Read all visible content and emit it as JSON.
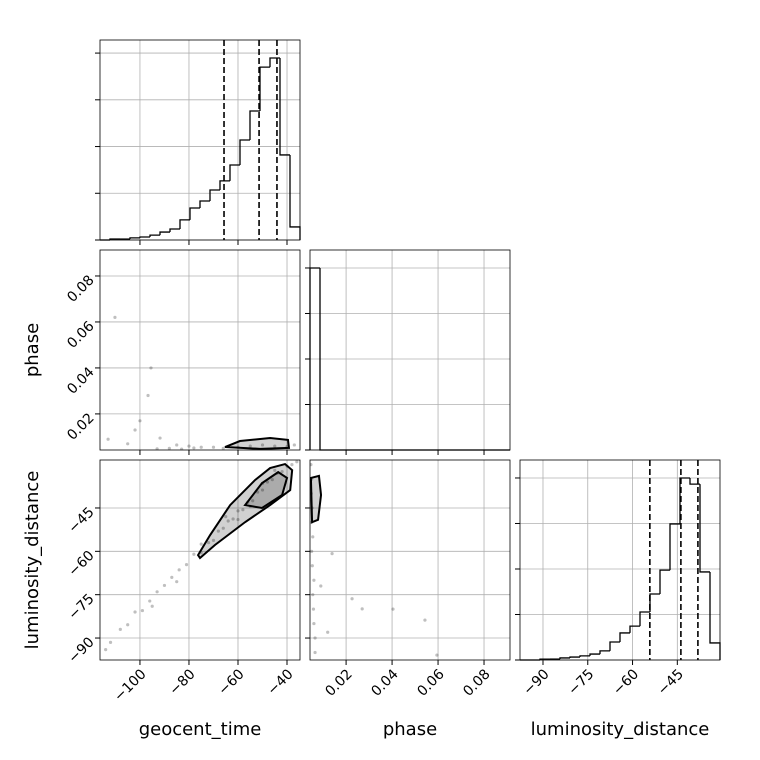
{
  "chart_data": [
    {
      "type": "histogram",
      "color": "#000000",
      "grid": true,
      "bins": [
        -116.3,
        -112.22,
        -108.14,
        -104.06,
        -99.98,
        -95.9,
        -91.82,
        -87.74,
        -83.66,
        -79.58,
        -75.5,
        -71.42,
        -67.34,
        -63.26,
        -59.18,
        -55.1,
        -51.02,
        -46.94,
        -42.86,
        -38.78,
        -34.7
      ],
      "values": [
        0,
        4,
        4,
        9,
        13,
        21,
        34,
        47,
        86,
        137,
        167,
        214,
        253,
        321,
        428,
        552,
        740,
        779,
        364,
        56
      ],
      "quantiles": [
        -65.7,
        -51.4,
        -44.1
      ],
      "xlim": [
        -116.3,
        -34.7
      ],
      "xticks": [
        -100,
        -80,
        -60,
        -40
      ],
      "ylim": [
        0,
        856
      ],
      "yticks": [
        0,
        200,
        400,
        600,
        800
      ]
    },
    {
      "type": "scatter",
      "color": "#000000",
      "grid": true,
      "ylabel": "phase",
      "x": [
        -110.2,
        -95.5,
        -96.7,
        -100,
        -102,
        -91.8,
        -105,
        -85,
        -80,
        -75,
        -70,
        -88,
        -78,
        -66,
        -60,
        -55,
        -50,
        -45,
        -40,
        -37,
        -93,
        -83,
        -113
      ],
      "y": [
        0.062,
        0.04,
        0.028,
        0.017,
        0.013,
        0.0095,
        0.007,
        0.0065,
        0.006,
        0.0055,
        0.0055,
        0.005,
        0.0052,
        0.005,
        0.0055,
        0.006,
        0.0065,
        0.006,
        0.0058,
        0.0065,
        0.0048,
        0.0047,
        0.009
      ],
      "contours": [
        {
          "x": [
            -65.3,
            -59.2,
            -46.9,
            -39.6,
            -39.2,
            -51.0
          ],
          "y": [
            0.0056,
            0.0082,
            0.0095,
            0.0087,
            0.0052,
            0.0048
          ]
        }
      ],
      "xlim": [
        -116.3,
        -34.7
      ],
      "xticks": [
        -100,
        -80,
        -60,
        -40
      ],
      "ylim": [
        0.0043,
        0.0913
      ],
      "yticks": [
        0.02,
        0.04,
        0.06,
        0.08
      ]
    },
    {
      "type": "histogram",
      "color": "#000000",
      "grid": true,
      "bins": [
        0.0043,
        0.00865,
        0.013,
        0.01735,
        0.0217,
        0.02605,
        0.0304,
        0.03475,
        0.0391,
        0.04345,
        0.0478,
        0.05215,
        0.0565,
        0.06085,
        0.0652,
        0.06955,
        0.0739,
        0.07825,
        0.0826,
        0.08695,
        0.0913
      ],
      "values": [
        800,
        0,
        0,
        0,
        0,
        0,
        0,
        0,
        0,
        0,
        0,
        0,
        0,
        0,
        0,
        0,
        0,
        0,
        0,
        0
      ],
      "xlim": [
        0.0043,
        0.0913
      ],
      "xticks": [
        0.02,
        0.04,
        0.06,
        0.08
      ],
      "ylim": [
        0,
        879
      ],
      "yticks": [
        0,
        200,
        400,
        600,
        800
      ]
    },
    {
      "type": "scatter",
      "color": "#000000",
      "grid": true,
      "xlabel": "geocent_time",
      "ylabel": "luminosity_distance",
      "x": [
        -112,
        -108,
        -105,
        -102,
        -99,
        -96,
        -93,
        -90,
        -87,
        -84,
        -81,
        -78,
        -75,
        -72,
        -70,
        -68,
        -66,
        -64,
        -62,
        -60,
        -58,
        -56,
        -54,
        -52,
        -50,
        -48,
        -46,
        -44,
        -42,
        -40,
        -38,
        -36,
        -95,
        -85,
        -65,
        -55,
        -45,
        -75,
        -60,
        -50,
        -114
      ],
      "y": [
        -91.5,
        -87.0,
        -85.4,
        -81.0,
        -80.5,
        -77.2,
        -74.0,
        -71.8,
        -69.0,
        -66.4,
        -64.6,
        -61.0,
        -60.5,
        -57.0,
        -56.2,
        -53.0,
        -52.0,
        -49.5,
        -48.8,
        -46.0,
        -45.6,
        -43.0,
        -42.5,
        -39.5,
        -38.8,
        -36.0,
        -35.2,
        -33.0,
        -32.4,
        -30.5,
        -30.0,
        -29.0,
        -79.0,
        -70.5,
        -48.0,
        -44.5,
        -32.0,
        -57.5,
        -49.0,
        -36.5,
        -94.0
      ],
      "contours": [
        {
          "x": [
            -76.3,
            -71.4,
            -63.2,
            -53.0,
            -46.9,
            -40.8,
            -37.9,
            -38.7,
            -46.9,
            -57.1,
            -69.4,
            -75.5
          ],
          "y": [
            -61.3,
            -54.4,
            -44.0,
            -35.3,
            -31.2,
            -29.8,
            -31.9,
            -38.8,
            -44.0,
            -49.9,
            -57.8,
            -62.3
          ]
        },
        {
          "x": [
            -57.1,
            -50.2,
            -43.6,
            -40.0,
            -42.0,
            -50.2
          ],
          "y": [
            -44.0,
            -36.4,
            -32.6,
            -34.6,
            -40.5,
            -45.0
          ]
        }
      ],
      "xlim": [
        -116.3,
        -34.7
      ],
      "xticks": [
        {
          "value": -100,
          "label": "−100"
        },
        {
          "value": -80,
          "label": "−80"
        },
        {
          "value": -60,
          "label": "−60"
        },
        {
          "value": -40,
          "label": "−40"
        }
      ],
      "ylim": [
        -97.6,
        -28.4
      ],
      "yticks": [
        {
          "value": -90,
          "label": "−90"
        },
        {
          "value": -75,
          "label": "−75"
        },
        {
          "value": -60,
          "label": "−60"
        },
        {
          "value": -45,
          "label": "−45"
        }
      ]
    },
    {
      "type": "scatter",
      "color": "#000000",
      "grid": true,
      "xlabel": "phase",
      "x": [
        0.0047,
        0.005,
        0.0048,
        0.0052,
        0.0049,
        0.0055,
        0.005,
        0.0053,
        0.006,
        0.0055,
        0.0058,
        0.006,
        0.0065,
        0.0139,
        0.0226,
        0.027,
        0.0404,
        0.0543,
        0.0595,
        0.009,
        0.012,
        0.0065
      ],
      "y": [
        -30,
        -35,
        -40,
        -45,
        -50,
        -55,
        -60,
        -65,
        -70,
        -75,
        -80,
        -85,
        -90,
        -60.8,
        -76.4,
        -79.9,
        -80.0,
        -83.8,
        -95.9,
        -72,
        -88,
        -95
      ],
      "contours": [
        {
          "x": [
            0.0047,
            0.0082,
            0.0091,
            0.0078,
            0.0052
          ],
          "y": [
            -34.6,
            -33.9,
            -40.5,
            -49.1,
            -49.9
          ]
        }
      ],
      "xlim": [
        0.0043,
        0.0913
      ],
      "xticks": [
        0.02,
        0.04,
        0.06,
        0.08
      ],
      "ylim": [
        -97.6,
        -28.4
      ],
      "yticks": [
        -90,
        -75,
        -60,
        -45
      ]
    },
    {
      "type": "histogram",
      "color": "#000000",
      "grid": true,
      "xlabel": "luminosity_distance",
      "bins": [
        -97.7,
        -94.35,
        -91.0,
        -87.65,
        -84.3,
        -80.95,
        -77.6,
        -74.25,
        -70.9,
        -67.55,
        -64.2,
        -60.85,
        -57.5,
        -54.15,
        -50.8,
        -47.45,
        -44.1,
        -40.75,
        -37.4,
        -34.05,
        -30.7
      ],
      "values": [
        0,
        0,
        4,
        4,
        9,
        13,
        18,
        26,
        40,
        79,
        119,
        149,
        211,
        290,
        395,
        598,
        800,
        773,
        387,
        75
      ],
      "quantiles": [
        -54.2,
        -43.8,
        -38.1
      ],
      "xlim": [
        -97.7,
        -30.7
      ],
      "xticks": [
        {
          "value": -90,
          "label": "−90"
        },
        {
          "value": -75,
          "label": "−75"
        },
        {
          "value": -60,
          "label": "−60"
        },
        {
          "value": -45,
          "label": "−45"
        }
      ],
      "ylim": [
        0,
        879
      ],
      "yticks": [
        0,
        200,
        400,
        600,
        800
      ]
    }
  ]
}
